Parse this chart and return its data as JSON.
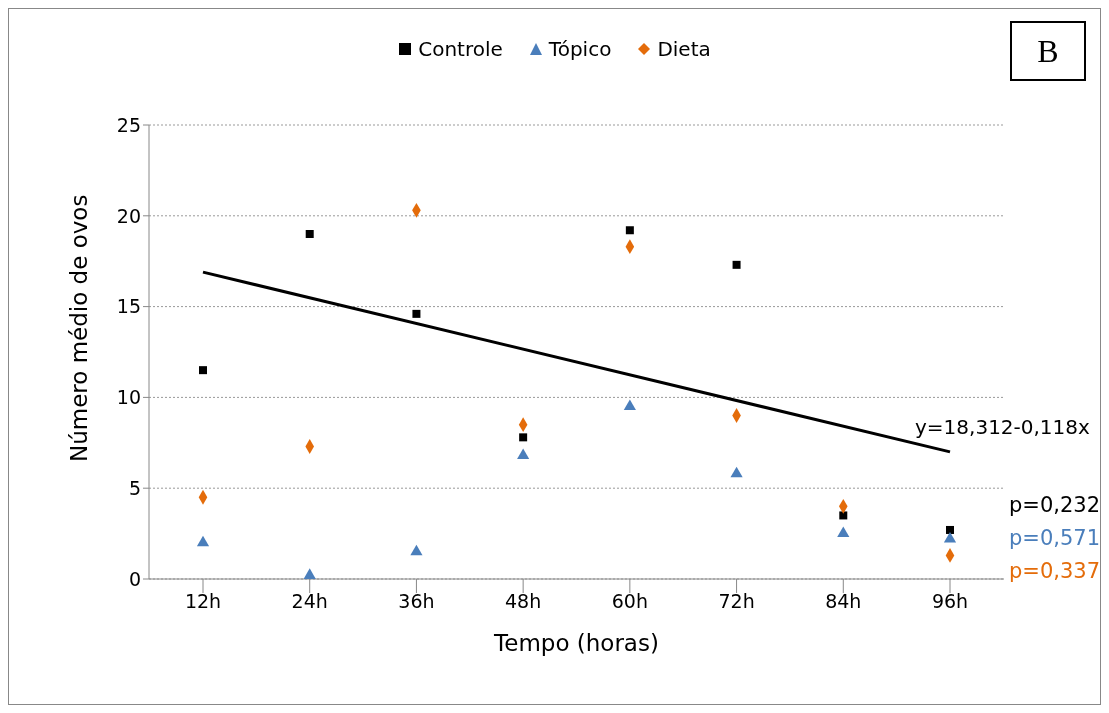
{
  "chart_data": {
    "type": "scatter",
    "xlabel": "Tempo (horas)",
    "ylabel": "Número médio de ovos",
    "categories": [
      "12h",
      "24h",
      "36h",
      "48h",
      "60h",
      "72h",
      "84h",
      "96h"
    ],
    "series": [
      {
        "name": "Controle",
        "color": "#000000",
        "marker": "square",
        "values": [
          11.5,
          19.0,
          14.6,
          7.8,
          19.2,
          17.3,
          3.5,
          2.7
        ]
      },
      {
        "name": "Tópico",
        "color": "#4a7ebb",
        "marker": "triangle",
        "values": [
          2.0,
          0.2,
          1.5,
          6.8,
          9.5,
          5.8,
          2.5,
          2.2
        ]
      },
      {
        "name": "Dieta",
        "color": "#e46c0a",
        "marker": "diamond",
        "values": [
          4.5,
          7.3,
          20.3,
          8.5,
          18.3,
          9.0,
          4.0,
          1.3
        ]
      },
      {
        "type": "line",
        "color": "#000000",
        "marker": "none",
        "x": [
          "12h",
          "96h"
        ],
        "values": [
          16.9,
          7.0
        ]
      }
    ],
    "ylim": [
      0,
      25
    ],
    "yticks": [
      0,
      5,
      10,
      15,
      20,
      25
    ],
    "grid": "y",
    "legend": "top",
    "annotations": [
      "B",
      "y=18,312-0,118x",
      "p=0,232",
      "p=0,571",
      "p=0,337"
    ]
  }
}
